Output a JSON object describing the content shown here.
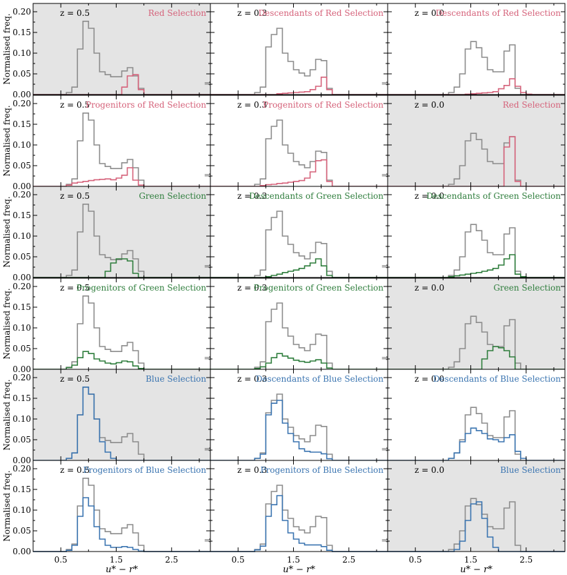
{
  "chart_data": {
    "type": "histogram-grid",
    "y_axis_label": "Normalised freq.",
    "x_axis_label": "u* − r*",
    "xlim": [
      0.0,
      3.2
    ],
    "ylim": [
      0.0,
      0.22
    ],
    "xticks": [
      "0.5",
      "1.5",
      "2.5"
    ],
    "yticks": [
      "0.00",
      "0.05",
      "0.10",
      "0.15",
      "0.20"
    ],
    "bin_edges": [
      0.0,
      0.1,
      0.2,
      0.3,
      0.4,
      0.5,
      0.6,
      0.7,
      0.8,
      0.9,
      1.0,
      1.1,
      1.2,
      1.3,
      1.4,
      1.5,
      1.6,
      1.7,
      1.8,
      1.9,
      2.0,
      2.1,
      2.2,
      2.3,
      2.4,
      2.5,
      2.6,
      2.7,
      2.8,
      2.9,
      3.0,
      3.1,
      3.2
    ],
    "colors": {
      "gray": "#8c8c8c",
      "red": "#d5627a",
      "green": "#2e7d3c",
      "blue": "#3a74b0",
      "shade": "#e4e4e4"
    },
    "columns": [
      "z = 0.5",
      "z = 0.3",
      "z = 0.0"
    ],
    "all_galaxies": {
      "z05": [
        0,
        0,
        0,
        0,
        0,
        0,
        0.005,
        0.018,
        0.11,
        0.177,
        0.16,
        0.1,
        0.055,
        0.048,
        0.043,
        0.043,
        0.057,
        0.065,
        0.045,
        0.015,
        0,
        0,
        0,
        0,
        0,
        0,
        0,
        0,
        0,
        0,
        0,
        0
      ],
      "z03": [
        0,
        0,
        0,
        0,
        0,
        0,
        0,
        0,
        0.005,
        0.018,
        0.115,
        0.145,
        0.16,
        0.1,
        0.08,
        0.06,
        0.052,
        0.045,
        0.06,
        0.085,
        0.082,
        0.015,
        0,
        0,
        0,
        0,
        0,
        0,
        0,
        0,
        0,
        0
      ],
      "z00": [
        0,
        0,
        0,
        0,
        0,
        0,
        0,
        0,
        0,
        0,
        0,
        0.005,
        0.018,
        0.05,
        0.11,
        0.128,
        0.113,
        0.09,
        0.06,
        0.055,
        0.055,
        0.105,
        0.12,
        0.015,
        0,
        0,
        0,
        0,
        0,
        0,
        0,
        0
      ]
    },
    "panels": [
      {
        "row": 0,
        "col": 0,
        "redshift": "z = 0.5",
        "title": "Red Selection",
        "color": "red",
        "shaded": true,
        "arrow": true,
        "values": [
          0,
          0,
          0,
          0,
          0,
          0,
          0,
          0,
          0,
          0,
          0,
          0,
          0,
          0,
          0,
          0,
          0.018,
          0.045,
          0.048,
          0.012,
          0,
          0,
          0,
          0,
          0,
          0,
          0,
          0,
          0,
          0,
          0,
          0
        ]
      },
      {
        "row": 0,
        "col": 1,
        "redshift": "z = 0.3",
        "title": "Descendants of Red Selection",
        "color": "red",
        "shaded": false,
        "arrow": true,
        "values": [
          0,
          0,
          0,
          0,
          0,
          0,
          0,
          0,
          0,
          0,
          0,
          0,
          0.002,
          0.003,
          0.004,
          0.005,
          0.006,
          0.007,
          0.012,
          0.02,
          0.042,
          0.012,
          0,
          0,
          0,
          0,
          0,
          0,
          0,
          0,
          0,
          0
        ]
      },
      {
        "row": 0,
        "col": 2,
        "redshift": "z = 0.0",
        "title": "Descendants of Red Selection",
        "color": "red",
        "shaded": false,
        "arrow": false,
        "values": [
          0,
          0,
          0,
          0,
          0,
          0,
          0,
          0,
          0,
          0,
          0,
          0,
          0,
          0,
          0.001,
          0.002,
          0.003,
          0.004,
          0.005,
          0.007,
          0.014,
          0.022,
          0.038,
          0.02,
          0.005,
          0.001,
          0,
          0,
          0,
          0,
          0,
          0
        ]
      },
      {
        "row": 1,
        "col": 0,
        "redshift": "z = 0.5",
        "title": "Progenitors of Red Selection",
        "color": "red",
        "shaded": false,
        "arrow": true,
        "values": [
          0,
          0,
          0,
          0,
          0,
          0,
          0.003,
          0.008,
          0.01,
          0.012,
          0.014,
          0.016,
          0.017,
          0.018,
          0.016,
          0.02,
          0.027,
          0.045,
          0.015,
          0.003,
          0,
          0,
          0,
          0,
          0,
          0,
          0,
          0,
          0,
          0,
          0,
          0
        ]
      },
      {
        "row": 1,
        "col": 1,
        "redshift": "z = 0.3",
        "title": "Progenitors of Red Selection",
        "color": "red",
        "shaded": false,
        "arrow": true,
        "values": [
          0,
          0,
          0,
          0,
          0,
          0,
          0,
          0,
          0,
          0.002,
          0.004,
          0.005,
          0.007,
          0.008,
          0.01,
          0.012,
          0.014,
          0.02,
          0.035,
          0.062,
          0.064,
          0.012,
          0,
          0,
          0,
          0,
          0,
          0,
          0,
          0,
          0,
          0
        ]
      },
      {
        "row": 1,
        "col": 2,
        "redshift": "z = 0.0",
        "title": "Red Selection",
        "color": "red",
        "shaded": true,
        "arrow": false,
        "values": [
          0,
          0,
          0,
          0,
          0,
          0,
          0,
          0,
          0,
          0,
          0,
          0,
          0,
          0,
          0,
          0,
          0,
          0,
          0,
          0,
          0,
          0.095,
          0.12,
          0.012,
          0,
          0,
          0,
          0,
          0,
          0,
          0,
          0
        ]
      },
      {
        "row": 2,
        "col": 0,
        "redshift": "z = 0.5",
        "title": "Green Selection",
        "color": "green",
        "shaded": true,
        "arrow": true,
        "values": [
          0,
          0,
          0,
          0,
          0,
          0,
          0,
          0,
          0,
          0,
          0,
          0,
          0,
          0.015,
          0.035,
          0.045,
          0.045,
          0.04,
          0.01,
          0,
          0,
          0,
          0,
          0,
          0,
          0,
          0,
          0,
          0,
          0,
          0,
          0
        ]
      },
      {
        "row": 2,
        "col": 1,
        "redshift": "z = 0.3",
        "title": "Descendants of Green Selection",
        "color": "green",
        "shaded": false,
        "arrow": true,
        "values": [
          0,
          0,
          0,
          0,
          0,
          0,
          0,
          0,
          0,
          0,
          0.002,
          0.005,
          0.008,
          0.012,
          0.015,
          0.018,
          0.022,
          0.028,
          0.035,
          0.045,
          0.028,
          0.005,
          0,
          0,
          0,
          0,
          0,
          0,
          0,
          0,
          0,
          0
        ]
      },
      {
        "row": 2,
        "col": 2,
        "redshift": "z = 0.0",
        "title": "Descendants of Green Selection",
        "color": "green",
        "shaded": false,
        "arrow": false,
        "values": [
          0,
          0,
          0,
          0,
          0,
          0,
          0,
          0,
          0,
          0,
          0,
          0.002,
          0.004,
          0.006,
          0.008,
          0.01,
          0.012,
          0.015,
          0.018,
          0.022,
          0.03,
          0.045,
          0.055,
          0.008,
          0.002,
          0,
          0,
          0,
          0,
          0,
          0,
          0
        ]
      },
      {
        "row": 3,
        "col": 0,
        "redshift": "z = 0.5",
        "title": "Progenitors of Green Selection",
        "color": "green",
        "shaded": false,
        "arrow": true,
        "values": [
          0,
          0,
          0,
          0,
          0,
          0,
          0.004,
          0.01,
          0.028,
          0.043,
          0.038,
          0.025,
          0.02,
          0.015,
          0.013,
          0.016,
          0.02,
          0.018,
          0.008,
          0.002,
          0,
          0,
          0,
          0,
          0,
          0,
          0,
          0,
          0,
          0,
          0,
          0
        ]
      },
      {
        "row": 3,
        "col": 1,
        "redshift": "z = 0.3",
        "title": "Progenitors of Green Selection",
        "color": "green",
        "shaded": false,
        "arrow": true,
        "values": [
          0,
          0,
          0,
          0,
          0,
          0,
          0,
          0,
          0.002,
          0.006,
          0.015,
          0.028,
          0.038,
          0.032,
          0.027,
          0.022,
          0.019,
          0.017,
          0.02,
          0.023,
          0.015,
          0.003,
          0,
          0,
          0,
          0,
          0,
          0,
          0,
          0,
          0,
          0
        ]
      },
      {
        "row": 3,
        "col": 2,
        "redshift": "z = 0.0",
        "title": "Green Selection",
        "color": "green",
        "shaded": true,
        "arrow": false,
        "values": [
          0,
          0,
          0,
          0,
          0,
          0,
          0,
          0,
          0,
          0,
          0,
          0,
          0,
          0,
          0,
          0,
          0,
          0.025,
          0.045,
          0.055,
          0.052,
          0.045,
          0.03,
          0,
          0,
          0,
          0,
          0,
          0,
          0,
          0,
          0
        ]
      },
      {
        "row": 4,
        "col": 0,
        "redshift": "z = 0.5",
        "title": "Blue Selection",
        "color": "blue",
        "shaded": true,
        "arrow": true,
        "values": [
          0,
          0,
          0,
          0,
          0,
          0,
          0.005,
          0.018,
          0.11,
          0.177,
          0.16,
          0.1,
          0.045,
          0.02,
          0.005,
          0,
          0,
          0,
          0,
          0,
          0,
          0,
          0,
          0,
          0,
          0,
          0,
          0,
          0,
          0,
          0,
          0
        ]
      },
      {
        "row": 4,
        "col": 1,
        "redshift": "z = 0.3",
        "title": "Descendants of Blue Selection",
        "color": "blue",
        "shaded": false,
        "arrow": true,
        "values": [
          0,
          0,
          0,
          0,
          0,
          0,
          0,
          0,
          0.005,
          0.015,
          0.11,
          0.138,
          0.145,
          0.09,
          0.065,
          0.045,
          0.028,
          0.022,
          0.02,
          0.02,
          0.016,
          0.004,
          0,
          0,
          0,
          0,
          0,
          0,
          0,
          0,
          0,
          0
        ]
      },
      {
        "row": 4,
        "col": 2,
        "redshift": "z = 0.0",
        "title": "Descendants of Blue Selection",
        "color": "blue",
        "shaded": false,
        "arrow": false,
        "values": [
          0,
          0,
          0,
          0,
          0,
          0,
          0,
          0,
          0,
          0,
          0,
          0.005,
          0.018,
          0.045,
          0.065,
          0.078,
          0.072,
          0.065,
          0.052,
          0.05,
          0.045,
          0.055,
          0.062,
          0.022,
          0.005,
          0,
          0,
          0,
          0,
          0,
          0,
          0
        ]
      },
      {
        "row": 5,
        "col": 0,
        "redshift": "z = 0.5",
        "title": "Progenitors of Blue Selection",
        "color": "blue",
        "shaded": false,
        "arrow": true,
        "values": [
          0,
          0,
          0,
          0,
          0,
          0,
          0.003,
          0.015,
          0.085,
          0.13,
          0.11,
          0.06,
          0.03,
          0.015,
          0.01,
          0.01,
          0.012,
          0.01,
          0.005,
          0.001,
          0,
          0,
          0,
          0,
          0,
          0,
          0,
          0,
          0,
          0,
          0,
          0
        ]
      },
      {
        "row": 5,
        "col": 1,
        "redshift": "z = 0.3",
        "title": "Progenitors of Blue Selection",
        "color": "blue",
        "shaded": false,
        "arrow": true,
        "values": [
          0,
          0,
          0,
          0,
          0,
          0,
          0,
          0,
          0.004,
          0.013,
          0.085,
          0.113,
          0.135,
          0.075,
          0.045,
          0.03,
          0.02,
          0.016,
          0.016,
          0.016,
          0.012,
          0.003,
          0,
          0,
          0,
          0,
          0,
          0,
          0,
          0,
          0,
          0
        ]
      },
      {
        "row": 5,
        "col": 2,
        "redshift": "z = 0.0",
        "title": "Blue Selection",
        "color": "blue",
        "shaded": true,
        "arrow": false,
        "values": [
          0,
          0,
          0,
          0,
          0,
          0,
          0,
          0,
          0,
          0,
          0,
          0,
          0.005,
          0.025,
          0.075,
          0.115,
          0.12,
          0.08,
          0.035,
          0.01,
          0,
          0,
          0,
          0,
          0,
          0,
          0,
          0,
          0,
          0,
          0,
          0
        ]
      }
    ]
  }
}
